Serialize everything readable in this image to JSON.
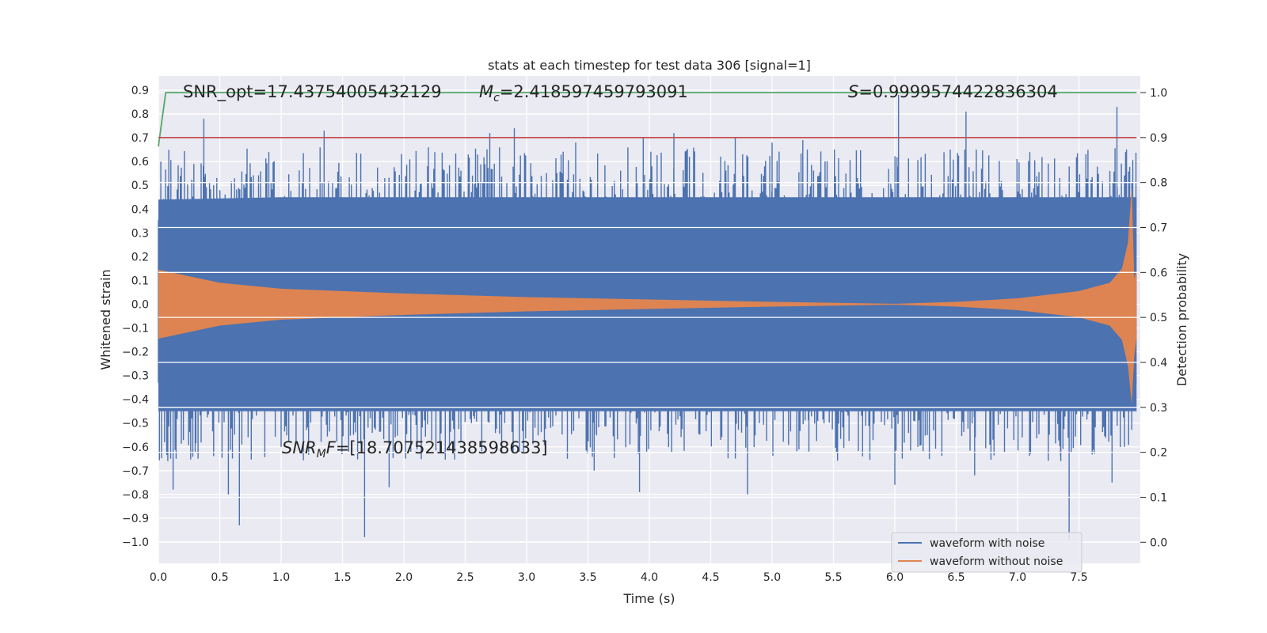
{
  "chart_data": {
    "type": "line",
    "title": "stats at each timestep for test data 306 [signal=1]",
    "xlabel": "Time (s)",
    "ylabel": "Whitened strain",
    "y2label": "Detection probability",
    "xlim": [
      0.0,
      8.0
    ],
    "ylim": [
      -1.09,
      0.96
    ],
    "y2lim": [
      -0.047,
      1.037
    ],
    "xticks": [
      "0.0",
      "0.5",
      "1.0",
      "1.5",
      "2.0",
      "2.5",
      "3.0",
      "3.5",
      "4.0",
      "4.5",
      "5.0",
      "5.5",
      "6.0",
      "6.5",
      "7.0",
      "7.5"
    ],
    "yticks": [
      "0.9",
      "0.8",
      "0.7",
      "0.6",
      "0.5",
      "0.4",
      "0.3",
      "0.2",
      "0.1",
      "0.0",
      "−0.1",
      "−0.2",
      "−0.3",
      "−0.4",
      "−0.5",
      "−0.6",
      "−0.7",
      "−0.8",
      "−0.9",
      "−1.0"
    ],
    "y2ticks": [
      "1.0",
      "0.9",
      "0.8",
      "0.7",
      "0.6",
      "0.5",
      "0.4",
      "0.3",
      "0.2",
      "0.1",
      "0.0"
    ],
    "annotations": {
      "snr_opt": "SNR_opt=17.43754005432129",
      "mc_symbol": "M",
      "mc_sub": "c",
      "mc_value": "=2.418597459793091",
      "s_symbol": "S",
      "s_value": "=0.9999574422836304",
      "snrmf_symbol": "SNR",
      "snrmf_sub": "M",
      "snrmf_f": "F",
      "snrmf_value": "=[18.707521438598633]"
    },
    "legend": {
      "placement": "lower-right",
      "entries": [
        "waveform with noise",
        "waveform without noise"
      ]
    },
    "series": [
      {
        "name": "waveform with noise",
        "color": "#4c72b0",
        "axis": "left",
        "envelope_upper": [
          [
            0.0,
            0.44
          ],
          [
            1.0,
            0.45
          ],
          [
            2.0,
            0.45
          ],
          [
            3.0,
            0.45
          ],
          [
            4.0,
            0.45
          ],
          [
            5.0,
            0.45
          ],
          [
            6.0,
            0.45
          ],
          [
            7.0,
            0.45
          ],
          [
            7.97,
            0.45
          ]
        ],
        "envelope_lower": [
          [
            0.0,
            -0.45
          ],
          [
            1.0,
            -0.45
          ],
          [
            2.0,
            -0.45
          ],
          [
            3.0,
            -0.45
          ],
          [
            4.0,
            -0.45
          ],
          [
            5.0,
            -0.45
          ],
          [
            6.0,
            -0.45
          ],
          [
            7.0,
            -0.45
          ],
          [
            7.97,
            -0.45
          ]
        ],
        "peaks": [
          [
            0.02,
            0.6
          ],
          [
            0.37,
            0.78
          ],
          [
            0.9,
            0.64
          ],
          [
            1.35,
            0.73
          ],
          [
            2.2,
            0.66
          ],
          [
            2.7,
            0.72
          ],
          [
            2.9,
            0.74
          ],
          [
            3.4,
            0.68
          ],
          [
            3.95,
            0.7
          ],
          [
            4.2,
            0.72
          ],
          [
            4.7,
            0.7
          ],
          [
            5.0,
            0.68
          ],
          [
            5.25,
            0.69
          ],
          [
            6.03,
            0.88
          ],
          [
            6.58,
            0.81
          ],
          [
            7.1,
            0.64
          ],
          [
            7.81,
            0.83
          ],
          [
            7.88,
            0.64
          ]
        ],
        "troughs": [
          [
            0.05,
            -0.58
          ],
          [
            0.1,
            -0.65
          ],
          [
            0.12,
            -0.78
          ],
          [
            0.3,
            -0.62
          ],
          [
            0.57,
            -0.8
          ],
          [
            0.66,
            -0.93
          ],
          [
            1.0,
            -0.6
          ],
          [
            1.55,
            -0.62
          ],
          [
            1.68,
            -0.98
          ],
          [
            1.88,
            -0.77
          ],
          [
            3.55,
            -0.7
          ],
          [
            3.92,
            -0.79
          ],
          [
            4.8,
            -0.8
          ],
          [
            5.3,
            -0.62
          ],
          [
            6.0,
            -0.76
          ],
          [
            6.65,
            -0.72
          ],
          [
            7.35,
            -0.64
          ],
          [
            7.42,
            -0.99
          ],
          [
            7.77,
            -0.75
          ]
        ]
      },
      {
        "name": "waveform without noise",
        "color": "#dd8452",
        "axis": "left",
        "envelope_upper": [
          [
            0.0,
            0.145
          ],
          [
            0.5,
            0.09
          ],
          [
            1.0,
            0.065
          ],
          [
            2.0,
            0.045
          ],
          [
            3.0,
            0.03
          ],
          [
            4.0,
            0.02
          ],
          [
            5.0,
            0.01
          ],
          [
            6.0,
            0.002
          ],
          [
            6.5,
            0.01
          ],
          [
            7.0,
            0.025
          ],
          [
            7.5,
            0.055
          ],
          [
            7.75,
            0.09
          ],
          [
            7.85,
            0.15
          ],
          [
            7.9,
            0.26
          ],
          [
            7.93,
            0.5
          ],
          [
            7.95,
            0.11
          ],
          [
            7.97,
            0.14
          ]
        ],
        "envelope_lower": [
          [
            0.0,
            -0.145
          ],
          [
            0.5,
            -0.09
          ],
          [
            1.0,
            -0.065
          ],
          [
            2.0,
            -0.045
          ],
          [
            3.0,
            -0.03
          ],
          [
            4.0,
            -0.02
          ],
          [
            5.0,
            -0.01
          ],
          [
            6.0,
            -0.002
          ],
          [
            6.5,
            -0.01
          ],
          [
            7.0,
            -0.025
          ],
          [
            7.5,
            -0.055
          ],
          [
            7.75,
            -0.09
          ],
          [
            7.85,
            -0.15
          ],
          [
            7.9,
            -0.26
          ],
          [
            7.93,
            -0.42
          ],
          [
            7.95,
            -0.22
          ],
          [
            7.97,
            -0.14
          ]
        ]
      },
      {
        "name": "",
        "color": "#55a868",
        "axis": "right",
        "points": [
          [
            0.0,
            0.88
          ],
          [
            0.06,
            1.0
          ],
          [
            7.97,
            1.0
          ]
        ]
      },
      {
        "name": "",
        "color": "#c44e52",
        "axis": "right",
        "points": [
          [
            0.0,
            0.9
          ],
          [
            7.97,
            0.9
          ]
        ]
      }
    ]
  }
}
